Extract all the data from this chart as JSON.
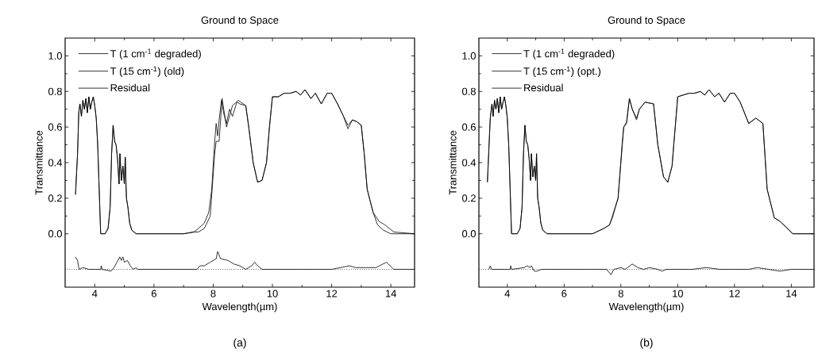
{
  "chart_data": [
    {
      "type": "line",
      "title": "Ground to Space",
      "xlabel": "Wavelength(µm)",
      "ylabel": "Transmittance",
      "annotations": [
        "(a)"
      ],
      "xlim": [
        3,
        14.8
      ],
      "ylim": [
        -0.3,
        1.1
      ],
      "xticks": [
        4,
        6,
        8,
        10,
        12,
        14
      ],
      "yticks": [
        {
          "value": 0,
          "label": "0.0"
        },
        {
          "value": 0.2,
          "label": "0.2"
        },
        {
          "value": 0.4,
          "label": "0.4"
        },
        {
          "value": 0.6,
          "label": "0.6"
        },
        {
          "value": 0.8,
          "label": "0.8"
        },
        {
          "value": 1.0,
          "label": "1.0"
        }
      ],
      "legend": "top left",
      "grid": false,
      "line_style": "solid",
      "marker": "none",
      "ref_lines": [
        {
          "axis": "y",
          "value": -0.2,
          "line_style": "dotted",
          "color": "#000000"
        }
      ],
      "series": [
        {
          "name": "T (1 cm$^{-1}$ degraded)",
          "color": "#000000",
          "x": [
            3.35,
            3.42,
            3.46,
            3.5,
            3.55,
            3.6,
            3.65,
            3.7,
            3.75,
            3.8,
            3.85,
            3.9,
            3.95,
            4.0,
            4.05,
            4.1,
            4.15,
            4.2,
            4.35,
            4.45,
            4.52,
            4.57,
            4.62,
            4.67,
            4.72,
            4.77,
            4.82,
            4.85,
            4.9,
            4.95,
            5.0,
            5.03,
            5.07,
            5.12,
            5.18,
            5.25,
            5.4,
            7.0,
            7.35,
            7.5,
            7.7,
            7.9,
            8.05,
            8.1,
            8.2,
            8.3,
            8.45,
            8.65,
            8.85,
            9.1,
            9.2,
            9.35,
            9.5,
            9.65,
            9.8,
            9.9,
            10.0,
            10.2,
            10.4,
            10.6,
            10.8,
            10.95,
            11.1,
            11.3,
            11.45,
            11.65,
            11.85,
            12.0,
            12.2,
            12.4,
            12.55,
            12.7,
            12.85,
            13.0,
            13.1,
            13.2,
            13.4,
            13.6,
            13.8,
            14.1,
            14.8
          ],
          "values": [
            0.22,
            0.45,
            0.68,
            0.73,
            0.66,
            0.75,
            0.7,
            0.76,
            0.68,
            0.77,
            0.7,
            0.74,
            0.77,
            0.72,
            0.65,
            0.5,
            0.25,
            0.0,
            0.0,
            0.03,
            0.15,
            0.45,
            0.61,
            0.52,
            0.5,
            0.42,
            0.28,
            0.45,
            0.3,
            0.38,
            0.28,
            0.43,
            0.2,
            0.15,
            0.06,
            0.02,
            0.0,
            0.0,
            0.01,
            0.01,
            0.03,
            0.1,
            0.45,
            0.52,
            0.52,
            0.76,
            0.6,
            0.72,
            0.75,
            0.72,
            0.6,
            0.4,
            0.29,
            0.3,
            0.4,
            0.6,
            0.77,
            0.77,
            0.79,
            0.79,
            0.8,
            0.78,
            0.81,
            0.76,
            0.79,
            0.73,
            0.79,
            0.79,
            0.73,
            0.66,
            0.61,
            0.64,
            0.63,
            0.61,
            0.45,
            0.25,
            0.12,
            0.07,
            0.05,
            0.01,
            0.0
          ]
        },
        {
          "name": "T (15 cm$^{-1}$) (old)",
          "color": "#000000",
          "x": [
            3.35,
            3.42,
            3.46,
            3.5,
            3.55,
            3.6,
            3.65,
            3.7,
            3.75,
            3.8,
            3.85,
            3.9,
            3.95,
            4.0,
            4.05,
            4.1,
            4.15,
            4.2,
            4.35,
            4.45,
            4.52,
            4.57,
            4.62,
            4.67,
            4.72,
            4.77,
            4.82,
            4.85,
            4.9,
            4.95,
            5.0,
            5.03,
            5.07,
            5.12,
            5.18,
            5.25,
            5.4,
            7.0,
            7.35,
            7.5,
            7.7,
            7.85,
            7.95,
            8.05,
            8.1,
            8.15,
            8.2,
            8.28,
            8.35,
            8.45,
            8.55,
            8.65,
            8.8,
            8.9,
            9.1,
            9.2,
            9.35,
            9.5,
            9.65,
            9.8,
            9.9,
            10.0,
            10.2,
            10.4,
            10.6,
            10.8,
            10.95,
            11.1,
            11.3,
            11.45,
            11.65,
            11.85,
            12.0,
            12.2,
            12.4,
            12.55,
            12.7,
            12.85,
            13.0,
            13.1,
            13.2,
            13.4,
            13.55,
            13.75,
            14.0,
            14.8
          ],
          "values": [
            0.22,
            0.45,
            0.68,
            0.73,
            0.66,
            0.75,
            0.7,
            0.76,
            0.68,
            0.77,
            0.7,
            0.74,
            0.77,
            0.72,
            0.65,
            0.5,
            0.25,
            0.0,
            0.0,
            0.03,
            0.15,
            0.45,
            0.61,
            0.52,
            0.5,
            0.42,
            0.28,
            0.45,
            0.3,
            0.38,
            0.28,
            0.43,
            0.2,
            0.15,
            0.06,
            0.02,
            0.0,
            0.0,
            0.01,
            0.03,
            0.06,
            0.12,
            0.25,
            0.52,
            0.62,
            0.55,
            0.64,
            0.75,
            0.68,
            0.62,
            0.7,
            0.66,
            0.74,
            0.73,
            0.72,
            0.6,
            0.4,
            0.29,
            0.3,
            0.4,
            0.6,
            0.77,
            0.77,
            0.79,
            0.79,
            0.8,
            0.78,
            0.81,
            0.76,
            0.79,
            0.73,
            0.79,
            0.79,
            0.73,
            0.66,
            0.59,
            0.64,
            0.63,
            0.61,
            0.45,
            0.25,
            0.12,
            0.05,
            0.02,
            0.0,
            0.0
          ]
        },
        {
          "name": "Residual",
          "color": "#000000",
          "x": [
            3.35,
            3.42,
            3.47,
            3.6,
            3.8,
            4.2,
            4.22,
            4.25,
            4.55,
            4.65,
            4.75,
            4.85,
            4.9,
            4.95,
            5.0,
            5.1,
            5.2,
            5.3,
            5.4,
            5.45,
            7.45,
            7.55,
            7.7,
            7.9,
            8.1,
            8.15,
            8.25,
            8.5,
            8.7,
            8.9,
            9.1,
            9.3,
            9.4,
            9.5,
            9.65,
            10.0,
            11.0,
            12.0,
            12.3,
            12.6,
            12.8,
            13.0,
            13.5,
            13.85,
            14.1,
            14.8
          ],
          "values": [
            -0.13,
            -0.15,
            -0.2,
            -0.19,
            -0.2,
            -0.2,
            -0.18,
            -0.2,
            -0.21,
            -0.19,
            -0.16,
            -0.13,
            -0.15,
            -0.13,
            -0.16,
            -0.15,
            -0.18,
            -0.2,
            -0.19,
            -0.2,
            -0.2,
            -0.18,
            -0.18,
            -0.16,
            -0.14,
            -0.1,
            -0.14,
            -0.15,
            -0.17,
            -0.18,
            -0.2,
            -0.18,
            -0.16,
            -0.18,
            -0.2,
            -0.2,
            -0.2,
            -0.2,
            -0.19,
            -0.18,
            -0.19,
            -0.19,
            -0.19,
            -0.16,
            -0.2,
            -0.2
          ]
        }
      ]
    },
    {
      "type": "line",
      "title": "Ground to Space",
      "xlabel": "Wavelength(µm)",
      "ylabel": "Transmittance",
      "annotations": [
        "(b)"
      ],
      "xlim": [
        3,
        14.8
      ],
      "ylim": [
        -0.3,
        1.1
      ],
      "xticks": [
        4,
        6,
        8,
        10,
        12,
        14
      ],
      "yticks": [
        {
          "value": 0,
          "label": "0.0"
        },
        {
          "value": 0.2,
          "label": "0.2"
        },
        {
          "value": 0.4,
          "label": "0.4"
        },
        {
          "value": 0.6,
          "label": "0.6"
        },
        {
          "value": 0.8,
          "label": "0.8"
        },
        {
          "value": 1.0,
          "label": "1.0"
        }
      ],
      "legend": "top left",
      "grid": false,
      "line_style": "solid",
      "marker": "none",
      "ref_lines": [
        {
          "axis": "y",
          "value": -0.2,
          "line_style": "dotted",
          "color": "#000000"
        }
      ],
      "series": [
        {
          "name": "T (1 cm$^{-1}$ degraded)",
          "color": "#000000",
          "x": [
            3.3,
            3.4,
            3.46,
            3.5,
            3.55,
            3.6,
            3.65,
            3.7,
            3.75,
            3.8,
            3.85,
            3.9,
            3.95,
            4.0,
            4.05,
            4.1,
            4.15,
            4.2,
            4.35,
            4.45,
            4.52,
            4.57,
            4.62,
            4.67,
            4.72,
            4.77,
            4.82,
            4.85,
            4.9,
            4.95,
            5.0,
            5.03,
            5.07,
            5.12,
            5.18,
            5.25,
            5.4,
            7.0,
            7.4,
            7.6,
            7.7,
            7.9,
            8.05,
            8.1,
            8.2,
            8.3,
            8.4,
            8.55,
            8.65,
            8.85,
            9.15,
            9.3,
            9.5,
            9.65,
            9.8,
            10.0,
            10.2,
            10.4,
            10.6,
            10.8,
            10.95,
            11.1,
            11.3,
            11.45,
            11.65,
            11.85,
            12.0,
            12.2,
            12.5,
            12.75,
            13.0,
            13.15,
            13.4,
            13.6,
            13.8,
            14.05,
            14.8
          ],
          "values": [
            0.29,
            0.65,
            0.73,
            0.66,
            0.75,
            0.7,
            0.76,
            0.68,
            0.77,
            0.7,
            0.74,
            0.77,
            0.72,
            0.65,
            0.5,
            0.25,
            0.0,
            0.0,
            0.0,
            0.03,
            0.15,
            0.45,
            0.61,
            0.52,
            0.5,
            0.42,
            0.3,
            0.45,
            0.32,
            0.38,
            0.3,
            0.45,
            0.2,
            0.15,
            0.06,
            0.02,
            0.0,
            0.0,
            0.03,
            0.05,
            0.1,
            0.2,
            0.5,
            0.6,
            0.62,
            0.76,
            0.7,
            0.65,
            0.7,
            0.74,
            0.73,
            0.5,
            0.32,
            0.29,
            0.38,
            0.77,
            0.78,
            0.79,
            0.79,
            0.8,
            0.78,
            0.81,
            0.77,
            0.79,
            0.74,
            0.79,
            0.79,
            0.74,
            0.62,
            0.65,
            0.62,
            0.25,
            0.09,
            0.07,
            0.04,
            0.0,
            0.0
          ]
        },
        {
          "name": "T (15 cm$^{-1}$) (opt.)",
          "color": "#000000",
          "x": [
            3.3,
            3.4,
            3.46,
            3.5,
            3.55,
            3.6,
            3.65,
            3.7,
            3.75,
            3.8,
            3.85,
            3.9,
            3.95,
            4.0,
            4.05,
            4.1,
            4.15,
            4.2,
            4.35,
            4.45,
            4.52,
            4.57,
            4.62,
            4.67,
            4.72,
            4.77,
            4.82,
            4.85,
            4.9,
            4.95,
            5.0,
            5.03,
            5.07,
            5.12,
            5.18,
            5.25,
            5.4,
            7.0,
            7.4,
            7.6,
            7.7,
            7.9,
            8.05,
            8.1,
            8.2,
            8.3,
            8.4,
            8.55,
            8.65,
            8.85,
            9.15,
            9.3,
            9.5,
            9.65,
            9.8,
            10.0,
            10.2,
            10.4,
            10.6,
            10.8,
            10.95,
            11.1,
            11.3,
            11.45,
            11.65,
            11.85,
            12.0,
            12.2,
            12.5,
            12.75,
            13.0,
            13.15,
            13.4,
            13.6,
            13.8,
            14.05,
            14.8
          ],
          "values": [
            0.29,
            0.65,
            0.73,
            0.66,
            0.75,
            0.7,
            0.76,
            0.68,
            0.77,
            0.7,
            0.74,
            0.77,
            0.72,
            0.65,
            0.5,
            0.25,
            0.0,
            0.0,
            0.0,
            0.03,
            0.15,
            0.45,
            0.61,
            0.52,
            0.5,
            0.42,
            0.3,
            0.45,
            0.32,
            0.38,
            0.3,
            0.45,
            0.2,
            0.15,
            0.06,
            0.02,
            0.0,
            0.0,
            0.03,
            0.05,
            0.09,
            0.2,
            0.52,
            0.6,
            0.63,
            0.76,
            0.7,
            0.64,
            0.7,
            0.74,
            0.73,
            0.5,
            0.32,
            0.29,
            0.38,
            0.77,
            0.78,
            0.79,
            0.79,
            0.8,
            0.78,
            0.81,
            0.77,
            0.79,
            0.74,
            0.79,
            0.79,
            0.74,
            0.62,
            0.65,
            0.62,
            0.25,
            0.09,
            0.07,
            0.04,
            0.0,
            0.0
          ]
        },
        {
          "name": "Residual",
          "color": "#000000",
          "x": [
            3.35,
            3.4,
            3.45,
            4.1,
            4.12,
            4.15,
            4.6,
            4.7,
            4.8,
            4.85,
            4.95,
            5.05,
            5.2,
            7.5,
            7.65,
            7.75,
            8.0,
            8.15,
            8.4,
            8.6,
            8.8,
            9.0,
            9.3,
            9.45,
            9.6,
            10.5,
            11.0,
            11.5,
            12.0,
            12.5,
            12.8,
            13.2,
            13.6,
            14.0,
            14.8
          ],
          "values": [
            -0.2,
            -0.18,
            -0.2,
            -0.2,
            -0.18,
            -0.2,
            -0.19,
            -0.18,
            -0.19,
            -0.18,
            -0.21,
            -0.21,
            -0.2,
            -0.2,
            -0.23,
            -0.2,
            -0.19,
            -0.2,
            -0.17,
            -0.19,
            -0.2,
            -0.19,
            -0.2,
            -0.21,
            -0.2,
            -0.2,
            -0.19,
            -0.2,
            -0.2,
            -0.2,
            -0.19,
            -0.2,
            -0.21,
            -0.2,
            -0.2
          ]
        }
      ]
    }
  ]
}
